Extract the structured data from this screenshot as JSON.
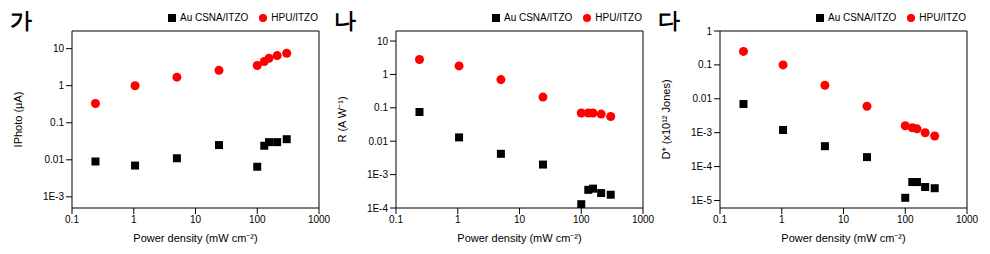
{
  "chart_data": [
    {
      "type": "scatter",
      "title": "가",
      "x_label": "Power density (mW cm⁻²)",
      "y_label": "IPhoto (μA)",
      "log": true,
      "grid": false,
      "legend": "upper right",
      "xlim": [
        0.1,
        1000
      ],
      "xticks": [
        0.1,
        1,
        10,
        100,
        1000
      ],
      "ylim": [
        0.0005,
        30
      ],
      "yticks": [
        {
          "value": 0.001,
          "label": "1E-3"
        },
        0.01,
        0.1,
        1,
        10
      ],
      "x": [
        0.24,
        1.05,
        5,
        24,
        100,
        130,
        155,
        210,
        300
      ],
      "series": [
        {
          "name": "Au CSNA/ITZO",
          "color": "#000000",
          "marker": "square",
          "values": [
            0.009,
            0.007,
            0.011,
            0.025,
            0.0065,
            0.024,
            0.03,
            0.03,
            0.036
          ]
        },
        {
          "name": "HPU/ITZO",
          "color": "#ff0000",
          "marker": "circle",
          "values": [
            0.33,
            1.0,
            1.7,
            2.6,
            3.5,
            4.5,
            5.5,
            6.5,
            7.5
          ]
        }
      ]
    },
    {
      "type": "scatter",
      "title": "나",
      "x_label": "Power density (mW cm⁻²)",
      "y_label": "R (A W⁻¹)",
      "log": true,
      "grid": false,
      "legend": "upper right",
      "xlim": [
        0.1,
        1000
      ],
      "xticks": [
        0.1,
        1,
        10,
        100,
        1000
      ],
      "ylim": [
        0.0001,
        20
      ],
      "yticks": [
        {
          "value": 0.0001,
          "label": "1E-4"
        },
        {
          "value": 0.001,
          "label": "1E-3"
        },
        0.01,
        0.1,
        1,
        10
      ],
      "x": [
        0.24,
        1.05,
        5,
        24,
        100,
        130,
        155,
        210,
        300
      ],
      "series": [
        {
          "name": "Au CSNA/ITZO",
          "color": "#000000",
          "marker": "square",
          "values": [
            0.075,
            0.013,
            0.0042,
            0.002,
            0.00013,
            0.00035,
            0.00038,
            0.00028,
            0.00025
          ]
        },
        {
          "name": "HPU/ITZO",
          "color": "#ff0000",
          "marker": "circle",
          "values": [
            2.8,
            1.8,
            0.7,
            0.21,
            0.07,
            0.07,
            0.07,
            0.065,
            0.055
          ]
        }
      ]
    },
    {
      "type": "scatter",
      "title": "다",
      "x_label": "Power density (mW cm⁻²)",
      "y_label": "D* (x10¹² Jones)",
      "log": true,
      "grid": false,
      "legend": "upper right",
      "xlim": [
        0.1,
        1000
      ],
      "xticks": [
        0.1,
        1,
        10,
        100,
        1000
      ],
      "ylim": [
        6e-06,
        1
      ],
      "yticks": [
        {
          "value": 1e-05,
          "label": "1E-5"
        },
        {
          "value": 0.0001,
          "label": "1E-4"
        },
        {
          "value": 0.001,
          "label": "1E-3"
        },
        0.01,
        0.1,
        1
      ],
      "x": [
        0.24,
        1.05,
        5,
        24,
        100,
        130,
        155,
        210,
        300
      ],
      "series": [
        {
          "name": "Au CSNA/ITZO",
          "color": "#000000",
          "marker": "square",
          "values": [
            0.007,
            0.0012,
            0.0004,
            0.00019,
            1.2e-05,
            3.5e-05,
            3.5e-05,
            2.5e-05,
            2.3e-05
          ]
        },
        {
          "name": "HPU/ITZO",
          "color": "#ff0000",
          "marker": "circle",
          "values": [
            0.25,
            0.1,
            0.025,
            0.006,
            0.0016,
            0.0014,
            0.0013,
            0.001,
            0.0008
          ]
        }
      ]
    }
  ]
}
